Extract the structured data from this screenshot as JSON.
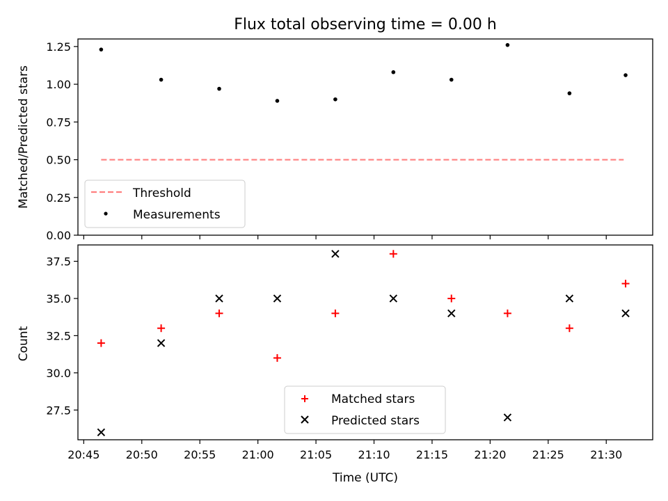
{
  "title": "Flux total observing time = 0.00 h",
  "xlabel": "Time (UTC)",
  "chart_data": [
    {
      "type": "scatter",
      "ylabel": "Matched/Predicted stars",
      "ylim": [
        0,
        1.3
      ],
      "yticks": [
        "0.00",
        "0.25",
        "0.50",
        "0.75",
        "1.00",
        "1.25"
      ],
      "ytick_values": [
        0,
        0.25,
        0.5,
        0.75,
        1.0,
        1.25
      ],
      "legend_position": "lower-left",
      "series": [
        {
          "name": "Threshold",
          "kind": "dashed-line",
          "color": "#ff7f7f",
          "x": [
            "20:46:30",
            "21:31:30"
          ],
          "y": [
            0.5,
            0.5
          ]
        },
        {
          "name": "Measurements",
          "kind": "dots",
          "color": "#000000",
          "x": [
            "20:46:30",
            "20:51:40",
            "20:56:40",
            "21:01:40",
            "21:06:40",
            "21:11:40",
            "21:16:40",
            "21:21:30",
            "21:26:50",
            "21:31:40"
          ],
          "y": [
            1.23,
            1.03,
            0.97,
            0.89,
            0.9,
            1.08,
            1.03,
            1.26,
            0.94,
            1.06
          ]
        }
      ]
    },
    {
      "type": "scatter",
      "ylabel": "Count",
      "ylim": [
        25.5,
        38.6
      ],
      "yticks": [
        "27.5",
        "30.0",
        "32.5",
        "35.0",
        "37.5"
      ],
      "ytick_values": [
        27.5,
        30,
        32.5,
        35,
        37.5
      ],
      "legend_position": "lower-center",
      "series": [
        {
          "name": "Matched stars",
          "kind": "plus",
          "color": "#ff0000",
          "x": [
            "20:46:30",
            "20:51:40",
            "20:56:40",
            "21:01:40",
            "21:06:40",
            "21:11:40",
            "21:16:40",
            "21:21:30",
            "21:26:50",
            "21:31:40"
          ],
          "y": [
            32,
            33,
            34,
            31,
            34,
            38,
            35,
            34,
            33,
            36
          ]
        },
        {
          "name": "Predicted stars",
          "kind": "cross",
          "color": "#000000",
          "x": [
            "20:46:30",
            "20:51:40",
            "20:56:40",
            "21:01:40",
            "21:06:40",
            "21:11:40",
            "21:16:40",
            "21:21:30",
            "21:26:50",
            "21:31:40"
          ],
          "y": [
            26,
            32,
            35,
            35,
            38,
            35,
            34,
            27,
            35,
            34
          ]
        }
      ]
    }
  ],
  "xaxis": {
    "range": [
      "20:44:30",
      "21:34:00"
    ],
    "ticks": [
      "20:45",
      "20:50",
      "20:55",
      "21:00",
      "21:05",
      "21:10",
      "21:15",
      "21:20",
      "21:25",
      "21:30"
    ]
  }
}
